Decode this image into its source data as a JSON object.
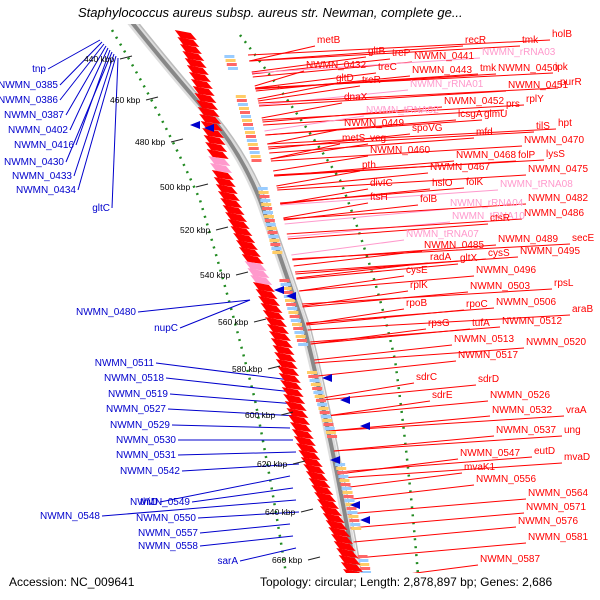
{
  "title": "Staphylococcus aureus subsp. aureus str. Newman, complete ge...",
  "footer": {
    "accession": "Accession: NC_009641",
    "summary": "Topology: circular; Length: 2,878,897 bp; Genes: 2,686"
  },
  "colors": {
    "forward_gene": "#ff0000",
    "rna_gene": "#ff99cc",
    "reverse_gene": "#0000cc",
    "gc_dots": "#228b22",
    "backbone": "#888888"
  },
  "kbp_ticks": [
    "420",
    "440 kbp",
    "460 kbp",
    "480 kbp",
    "500 kbp",
    "520 kbp",
    "540 kbp",
    "560 kbp",
    "580 kbp",
    "600 kbp",
    "620 kbp",
    "640 kbp",
    "660 kbp"
  ],
  "left_labels": [
    {
      "text": "tnp"
    },
    {
      "text": "NWMN_0385"
    },
    {
      "text": "NWMN_0386"
    },
    {
      "text": "NWMN_0387"
    },
    {
      "text": "NWMN_0402"
    },
    {
      "text": "NWMN_0416"
    },
    {
      "text": "NWMN_0430"
    },
    {
      "text": "NWMN_0433"
    },
    {
      "text": "NWMN_0434"
    },
    {
      "text": "gltC"
    },
    {
      "text": "NWMN_0480"
    },
    {
      "text": "nupC"
    },
    {
      "text": "NWMN_0511"
    },
    {
      "text": "NWMN_0518"
    },
    {
      "text": "NWMN_0519"
    },
    {
      "text": "NWMN_0527"
    },
    {
      "text": "NWMN_0529"
    },
    {
      "text": "NWMN_0530"
    },
    {
      "text": "NWMN_0531"
    },
    {
      "text": "NWMN_0542"
    },
    {
      "text": "thiD"
    },
    {
      "text": "NWMN_0549"
    },
    {
      "text": "NWMN_0548"
    },
    {
      "text": "NWMN_0550"
    },
    {
      "text": "NWMN_0557"
    },
    {
      "text": "NWMN_0558"
    },
    {
      "text": "sarA"
    }
  ],
  "right_labels": [
    {
      "text": "metB",
      "rna": false
    },
    {
      "text": "recR",
      "rna": false
    },
    {
      "text": "tmk",
      "rna": false
    },
    {
      "text": "holB",
      "rna": false
    },
    {
      "text": "gltB",
      "rna": false
    },
    {
      "text": "treP",
      "rna": false
    },
    {
      "text": "NWMN_0441",
      "rna": false
    },
    {
      "text": "NWMN_rRNA03",
      "rna": true
    },
    {
      "text": "NWMN_0432",
      "rna": false
    },
    {
      "text": "treC",
      "rna": false
    },
    {
      "text": "NWMN_0443",
      "rna": false
    },
    {
      "text": "tmk",
      "rna": false
    },
    {
      "text": "NWMN_0450",
      "rna": false
    },
    {
      "text": "ipk",
      "rna": false
    },
    {
      "text": "gltD",
      "rna": false
    },
    {
      "text": "treR",
      "rna": false
    },
    {
      "text": "NWMN_rRNA01",
      "rna": true
    },
    {
      "text": "NWMN_0451",
      "rna": false
    },
    {
      "text": "purR",
      "rna": false
    },
    {
      "text": "dnaX",
      "rna": false
    },
    {
      "text": "NWMN_0452",
      "rna": false
    },
    {
      "text": "prs",
      "rna": false
    },
    {
      "text": "rplY",
      "rna": false
    },
    {
      "text": "NWMN_tRNA02",
      "rna": true
    },
    {
      "text": "lcsgA",
      "rna": false
    },
    {
      "text": "glmU",
      "rna": false
    },
    {
      "text": "NWMN_0449",
      "rna": false
    },
    {
      "text": "spoVG",
      "rna": false
    },
    {
      "text": "mfd",
      "rna": false
    },
    {
      "text": "tilS",
      "rna": false
    },
    {
      "text": "hpt",
      "rna": false
    },
    {
      "text": "metS",
      "rna": false
    },
    {
      "text": "veg",
      "rna": false
    },
    {
      "text": "NWMN_0470",
      "rna": false
    },
    {
      "text": "NWMN_0460",
      "rna": false
    },
    {
      "text": "NWMN_0468",
      "rna": false
    },
    {
      "text": "folP",
      "rna": false
    },
    {
      "text": "lysS",
      "rna": false
    },
    {
      "text": "pth",
      "rna": false
    },
    {
      "text": "NWMN_0467",
      "rna": false
    },
    {
      "text": "NWMN_0475",
      "rna": false
    },
    {
      "text": "divIC",
      "rna": false
    },
    {
      "text": "hslO",
      "rna": false
    },
    {
      "text": "folK",
      "rna": false
    },
    {
      "text": "NWMN_tRNA08",
      "rna": true
    },
    {
      "text": "ftsH",
      "rna": false
    },
    {
      "text": "folB",
      "rna": false
    },
    {
      "text": "NWMN_rRNA04",
      "rna": true
    },
    {
      "text": "NWMN_0482",
      "rna": false
    },
    {
      "text": "NWMN_tRNA10",
      "rna": true
    },
    {
      "text": "ctsR",
      "rna": false
    },
    {
      "text": "NWMN_0486",
      "rna": false
    },
    {
      "text": "NWMN_tRNA07",
      "rna": true
    },
    {
      "text": "NWMN_0489",
      "rna": false
    },
    {
      "text": "secE",
      "rna": false
    },
    {
      "text": "NWMN_0485",
      "rna": false
    },
    {
      "text": "radA",
      "rna": false
    },
    {
      "text": "gltX",
      "rna": false
    },
    {
      "text": "cysS",
      "rna": false
    },
    {
      "text": "NWMN_0495",
      "rna": false
    },
    {
      "text": "cysE",
      "rna": false
    },
    {
      "text": "NWMN_0496",
      "rna": false
    },
    {
      "text": "rplK",
      "rna": false
    },
    {
      "text": "NWMN_0503",
      "rna": false
    },
    {
      "text": "rpsL",
      "rna": false
    },
    {
      "text": "rpoB",
      "rna": false
    },
    {
      "text": "rpoC",
      "rna": false
    },
    {
      "text": "NWMN_0506",
      "rna": false
    },
    {
      "text": "araB",
      "rna": false
    },
    {
      "text": "rpsG",
      "rna": false
    },
    {
      "text": "tufA",
      "rna": false
    },
    {
      "text": "NWMN_0512",
      "rna": false
    },
    {
      "text": "NWMN_0513",
      "rna": false
    },
    {
      "text": "NWMN_0520",
      "rna": false
    },
    {
      "text": "NWMN_0517",
      "rna": false
    },
    {
      "text": "sdrC",
      "rna": false
    },
    {
      "text": "sdrD",
      "rna": false
    },
    {
      "text": "sdrE",
      "rna": false
    },
    {
      "text": "NWMN_0526",
      "rna": false
    },
    {
      "text": "NWMN_0532",
      "rna": false
    },
    {
      "text": "vraA",
      "rna": false
    },
    {
      "text": "NWMN_0537",
      "rna": false
    },
    {
      "text": "ung",
      "rna": false
    },
    {
      "text": "NWMN_0547",
      "rna": false
    },
    {
      "text": "eutD",
      "rna": false
    },
    {
      "text": "mvaD",
      "rna": false
    },
    {
      "text": "mvaK1",
      "rna": false
    },
    {
      "text": "NWMN_0556",
      "rna": false
    },
    {
      "text": "NWMN_0564",
      "rna": false
    },
    {
      "text": "NWMN_0571",
      "rna": false
    },
    {
      "text": "NWMN_0576",
      "rna": false
    },
    {
      "text": "NWMN_0581",
      "rna": false
    },
    {
      "text": "NWMN_0587",
      "rna": false
    }
  ]
}
